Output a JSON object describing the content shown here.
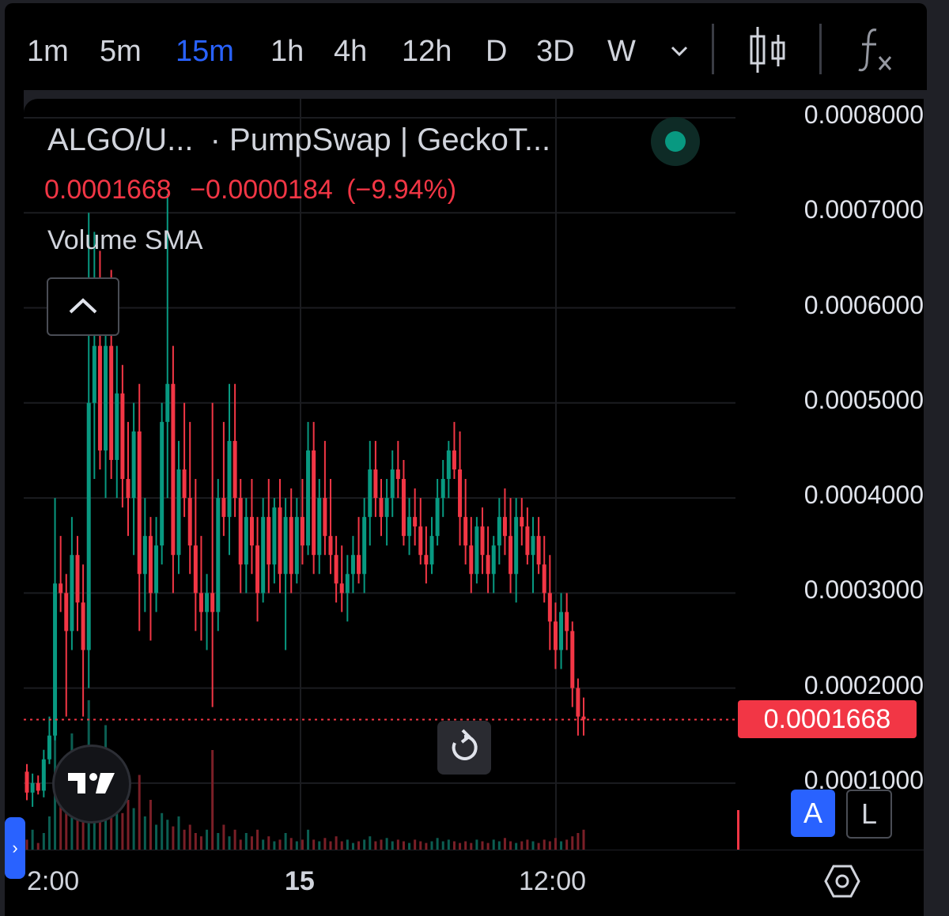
{
  "toolbar": {
    "timeframes": [
      "1m",
      "5m",
      "15m",
      "1h",
      "4h",
      "12h",
      "D",
      "3D",
      "W"
    ],
    "active_timeframe": "15m",
    "more_icon": "chevron-down-icon",
    "chart_type_icon": "candles-icon",
    "indicators_icon": "fx-icon"
  },
  "legend": {
    "symbol": "ALGO/U...",
    "exchange": "· PumpSwap | GeckoT...",
    "last_price": "0.0001668",
    "change": "−0.0000184",
    "change_pct": "(−9.94%)",
    "indicator": "Volume SMA"
  },
  "price_tag": "0.0001668",
  "buttons": {
    "auto": "A",
    "log": "L"
  },
  "colors": {
    "up": "#089981",
    "down": "#f23645",
    "accent": "#2962ff",
    "background": "#000000"
  },
  "chart_data": {
    "type": "candlestick",
    "y_tick_labels": [
      "0.0008000",
      "0.0007000",
      "0.0006000",
      "0.0005000",
      "0.0004000",
      "0.0003000",
      "0.0002000",
      "0.0001000"
    ],
    "x_tick_labels": [
      "2:00",
      "15",
      "12:00"
    ],
    "ylim": [
      3e-05,
      0.00082
    ],
    "last_price": 0.0001668,
    "grid": true,
    "legend": "top-left",
    "volume_sma": true,
    "candles": [
      [
        0.000112,
        0.00012,
        8.2e-05,
        9e-05
      ],
      [
        9e-05,
        0.00011,
        7.5e-05,
        0.0001
      ],
      [
        0.0001,
        0.000108,
        8.8e-05,
        9.2e-05
      ],
      [
        9.2e-05,
        0.000135,
        8.5e-05,
        0.000125
      ],
      [
        0.000125,
        0.00017,
        0.00012,
        0.00015
      ],
      [
        0.00015,
        0.0004,
        0.000145,
        0.00031
      ],
      [
        0.00031,
        0.00036,
        0.00028,
        0.0003
      ],
      [
        0.0003,
        0.00032,
        0.00017,
        0.00026
      ],
      [
        0.00026,
        0.00038,
        0.00024,
        0.00034
      ],
      [
        0.00034,
        0.00036,
        0.00026,
        0.00029
      ],
      [
        0.00029,
        0.00033,
        0.00017,
        0.00024
      ],
      [
        0.00024,
        0.0007,
        0.0002,
        0.0005
      ],
      [
        0.0005,
        0.00068,
        0.00042,
        0.00056
      ],
      [
        0.00056,
        0.00066,
        0.00043,
        0.00045
      ],
      [
        0.00045,
        0.0006,
        0.0004,
        0.00056
      ],
      [
        0.00056,
        0.00064,
        0.00042,
        0.00044
      ],
      [
        0.00044,
        0.00056,
        0.0004,
        0.00051
      ],
      [
        0.00051,
        0.00054,
        0.00039,
        0.00042
      ],
      [
        0.00042,
        0.00048,
        0.00036,
        0.0004
      ],
      [
        0.0004,
        0.0005,
        0.00034,
        0.00047
      ],
      [
        0.00047,
        0.00052,
        0.00026,
        0.00032
      ],
      [
        0.00032,
        0.0004,
        0.00028,
        0.00036
      ],
      [
        0.00036,
        0.00038,
        0.00025,
        0.0003
      ],
      [
        0.0003,
        0.00038,
        0.00028,
        0.00035
      ],
      [
        0.00035,
        0.0005,
        0.00033,
        0.00048
      ],
      [
        0.00048,
        0.00072,
        0.0004,
        0.00052
      ],
      [
        0.00052,
        0.00056,
        0.0003,
        0.00034
      ],
      [
        0.00034,
        0.00046,
        0.00032,
        0.00043
      ],
      [
        0.00043,
        0.0005,
        0.00038,
        0.0004
      ],
      [
        0.0004,
        0.00048,
        0.00032,
        0.00035
      ],
      [
        0.00035,
        0.00042,
        0.00026,
        0.0003
      ],
      [
        0.0003,
        0.00036,
        0.00025,
        0.00028
      ],
      [
        0.00028,
        0.00032,
        0.00024,
        0.0003
      ],
      [
        0.0003,
        0.0005,
        0.00018,
        0.00028
      ],
      [
        0.00028,
        0.00042,
        0.00026,
        0.0004
      ],
      [
        0.0004,
        0.00048,
        0.00036,
        0.00038
      ],
      [
        0.00038,
        0.00052,
        0.00034,
        0.00046
      ],
      [
        0.00046,
        0.00052,
        0.00038,
        0.0004
      ],
      [
        0.0004,
        0.00042,
        0.0003,
        0.00033
      ],
      [
        0.00033,
        0.0004,
        0.0003,
        0.00038
      ],
      [
        0.00038,
        0.00042,
        0.00032,
        0.00035
      ],
      [
        0.00035,
        0.00038,
        0.00027,
        0.0003
      ],
      [
        0.0003,
        0.0004,
        0.00029,
        0.00038
      ],
      [
        0.00038,
        0.00042,
        0.0003,
        0.00033
      ],
      [
        0.00033,
        0.0004,
        0.00031,
        0.00039
      ],
      [
        0.00039,
        0.00042,
        0.0003,
        0.00032
      ],
      [
        0.00032,
        0.0004,
        0.00024,
        0.00038
      ],
      [
        0.00038,
        0.00041,
        0.0003,
        0.00032
      ],
      [
        0.00032,
        0.0004,
        0.00031,
        0.00038
      ],
      [
        0.00038,
        0.00042,
        0.00033,
        0.00035
      ],
      [
        0.00035,
        0.00048,
        0.00034,
        0.00045
      ],
      [
        0.00045,
        0.00048,
        0.00032,
        0.00034
      ],
      [
        0.00034,
        0.00042,
        0.00032,
        0.0004
      ],
      [
        0.0004,
        0.00046,
        0.00034,
        0.00036
      ],
      [
        0.00036,
        0.00042,
        0.00032,
        0.00034
      ],
      [
        0.00034,
        0.00036,
        0.00029,
        0.00031
      ],
      [
        0.00031,
        0.00035,
        0.00028,
        0.0003
      ],
      [
        0.0003,
        0.00034,
        0.00027,
        0.00032
      ],
      [
        0.00032,
        0.00036,
        0.0003,
        0.00034
      ],
      [
        0.00034,
        0.00038,
        0.00031,
        0.00032
      ],
      [
        0.00032,
        0.0004,
        0.0003,
        0.00038
      ],
      [
        0.00038,
        0.00046,
        0.00035,
        0.00043
      ],
      [
        0.00043,
        0.00046,
        0.00038,
        0.0004
      ],
      [
        0.0004,
        0.00042,
        0.00036,
        0.00038
      ],
      [
        0.00038,
        0.00042,
        0.00035,
        0.0004
      ],
      [
        0.0004,
        0.00045,
        0.00038,
        0.00043
      ],
      [
        0.00043,
        0.00046,
        0.0004,
        0.00042
      ],
      [
        0.00042,
        0.00044,
        0.00035,
        0.00036
      ],
      [
        0.00036,
        0.0004,
        0.00034,
        0.00038
      ],
      [
        0.00038,
        0.00041,
        0.00035,
        0.00037
      ],
      [
        0.00037,
        0.0004,
        0.00033,
        0.00034
      ],
      [
        0.00034,
        0.00037,
        0.00031,
        0.00033
      ],
      [
        0.00033,
        0.00038,
        0.00032,
        0.00036
      ],
      [
        0.00036,
        0.00042,
        0.00035,
        0.0004
      ],
      [
        0.0004,
        0.00044,
        0.00038,
        0.00042
      ],
      [
        0.00042,
        0.00046,
        0.0004,
        0.00045
      ],
      [
        0.00045,
        0.00048,
        0.00042,
        0.00043
      ],
      [
        0.00043,
        0.00047,
        0.00035,
        0.00038
      ],
      [
        0.00038,
        0.00042,
        0.00033,
        0.00035
      ],
      [
        0.00035,
        0.00038,
        0.0003,
        0.00032
      ],
      [
        0.00032,
        0.00038,
        0.00031,
        0.00037
      ],
      [
        0.00037,
        0.00039,
        0.00032,
        0.00034
      ],
      [
        0.00034,
        0.00037,
        0.0003,
        0.00032
      ],
      [
        0.00032,
        0.00036,
        0.0003,
        0.00035
      ],
      [
        0.00035,
        0.0004,
        0.00033,
        0.00038
      ],
      [
        0.00038,
        0.00041,
        0.00034,
        0.00036
      ],
      [
        0.00036,
        0.0004,
        0.0003,
        0.00032
      ],
      [
        0.00032,
        0.0004,
        0.00029,
        0.00038
      ],
      [
        0.00038,
        0.0004,
        0.00035,
        0.00037
      ],
      [
        0.00037,
        0.00039,
        0.00033,
        0.00034
      ],
      [
        0.00034,
        0.00038,
        0.0003,
        0.00036
      ],
      [
        0.00036,
        0.00038,
        0.00032,
        0.00033
      ],
      [
        0.00033,
        0.00036,
        0.00029,
        0.0003
      ],
      [
        0.0003,
        0.00034,
        0.00024,
        0.00027
      ],
      [
        0.00027,
        0.00029,
        0.00022,
        0.00024
      ],
      [
        0.00024,
        0.0003,
        0.00022,
        0.00028
      ],
      [
        0.00028,
        0.0003,
        0.00024,
        0.00026
      ],
      [
        0.00026,
        0.00027,
        0.00018,
        0.0002
      ],
      [
        0.0002,
        0.00021,
        0.00015,
        0.00017
      ],
      [
        0.00017,
        0.00019,
        0.00015,
        0.000167
      ]
    ],
    "volume": [
      0.06,
      0.12,
      0.04,
      0.1,
      0.2,
      1.0,
      0.4,
      0.3,
      0.7,
      0.3,
      0.35,
      0.9,
      0.6,
      0.35,
      0.75,
      0.25,
      0.4,
      0.22,
      0.3,
      0.25,
      0.45,
      0.2,
      0.3,
      0.15,
      0.22,
      0.18,
      0.14,
      0.2,
      0.12,
      0.15,
      0.1,
      0.08,
      0.12,
      0.6,
      0.1,
      0.15,
      0.08,
      0.12,
      0.06,
      0.1,
      0.08,
      0.12,
      0.06,
      0.08,
      0.05,
      0.06,
      0.1,
      0.07,
      0.05,
      0.06,
      0.12,
      0.06,
      0.05,
      0.07,
      0.05,
      0.08,
      0.05,
      0.06,
      0.04,
      0.05,
      0.06,
      0.08,
      0.05,
      0.06,
      0.07,
      0.05,
      0.06,
      0.05,
      0.04,
      0.06,
      0.05,
      0.04,
      0.05,
      0.07,
      0.05,
      0.06,
      0.05,
      0.04,
      0.05,
      0.04,
      0.06,
      0.05,
      0.04,
      0.06,
      0.05,
      0.07,
      0.05,
      0.04,
      0.05,
      0.06,
      0.05,
      0.04,
      0.06,
      0.05,
      0.07,
      0.05,
      0.06,
      0.08,
      0.1,
      0.12
    ]
  }
}
